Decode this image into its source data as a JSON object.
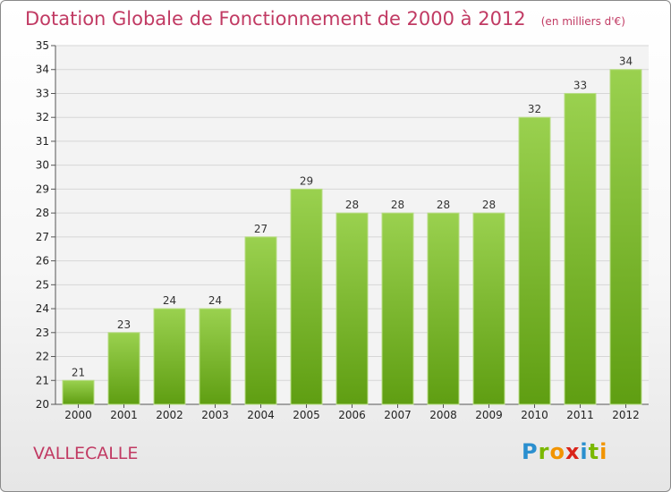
{
  "header": {
    "title": "Dotation Globale de Fonctionnement de 2000 à 2012",
    "subtitle": "(en milliers d'€)"
  },
  "commune": "VALLECALLE",
  "logo": "Proxiti",
  "colors": {
    "bar_light": "#9ad14f",
    "bar_dark": "#5f9e12",
    "title": "#c13a63"
  },
  "chart_data": {
    "type": "bar",
    "title": "Dotation Globale de Fonctionnement de 2000 à 2012",
    "subtitle": "(en milliers d'€)",
    "categories": [
      "2000",
      "2001",
      "2002",
      "2003",
      "2004",
      "2005",
      "2006",
      "2007",
      "2008",
      "2009",
      "2010",
      "2011",
      "2012"
    ],
    "values": [
      21,
      23,
      24,
      24,
      27,
      29,
      28,
      28,
      28,
      28,
      32,
      33,
      34
    ],
    "ylim": [
      20,
      35
    ],
    "yticks": [
      20,
      21,
      22,
      23,
      24,
      25,
      26,
      27,
      28,
      29,
      30,
      31,
      32,
      33,
      34,
      35
    ],
    "grid": true,
    "legend": "none"
  }
}
